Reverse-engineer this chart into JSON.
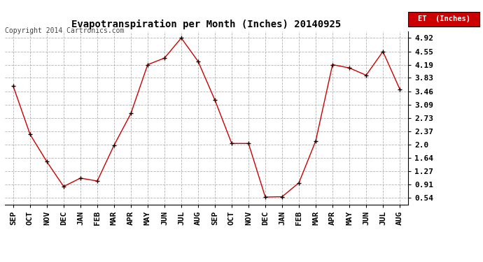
{
  "title": "Evapotranspiration per Month (Inches) 20140925",
  "copyright_text": "Copyright 2014 Cartronics.com",
  "legend_label": "ET  (Inches)",
  "legend_bg": "#cc0000",
  "legend_text_color": "#ffffff",
  "months": [
    "SEP",
    "OCT",
    "NOV",
    "DEC",
    "JAN",
    "FEB",
    "MAR",
    "APR",
    "MAY",
    "JUN",
    "JUL",
    "AUG",
    "SEP",
    "OCT",
    "NOV",
    "DEC",
    "JAN",
    "FEB",
    "MAR",
    "APR",
    "MAY",
    "JUN",
    "JUL",
    "AUG"
  ],
  "values": [
    3.6,
    2.28,
    1.53,
    0.85,
    1.08,
    1.0,
    1.98,
    2.85,
    4.19,
    4.37,
    4.92,
    4.28,
    3.22,
    2.03,
    2.03,
    0.56,
    0.57,
    0.95,
    2.1,
    4.19,
    4.1,
    3.9,
    4.55,
    3.52
  ],
  "line_color": "#cc0000",
  "marker_color": "#000000",
  "yticks": [
    0.54,
    0.91,
    1.27,
    1.64,
    2.0,
    2.37,
    2.73,
    3.09,
    3.46,
    3.83,
    4.19,
    4.55,
    4.92
  ],
  "ylim_min": 0.36,
  "ylim_max": 5.1,
  "background_color": "#ffffff",
  "grid_color": "#aaaaaa",
  "title_fontsize": 10,
  "copyright_fontsize": 7,
  "tick_fontsize": 8
}
